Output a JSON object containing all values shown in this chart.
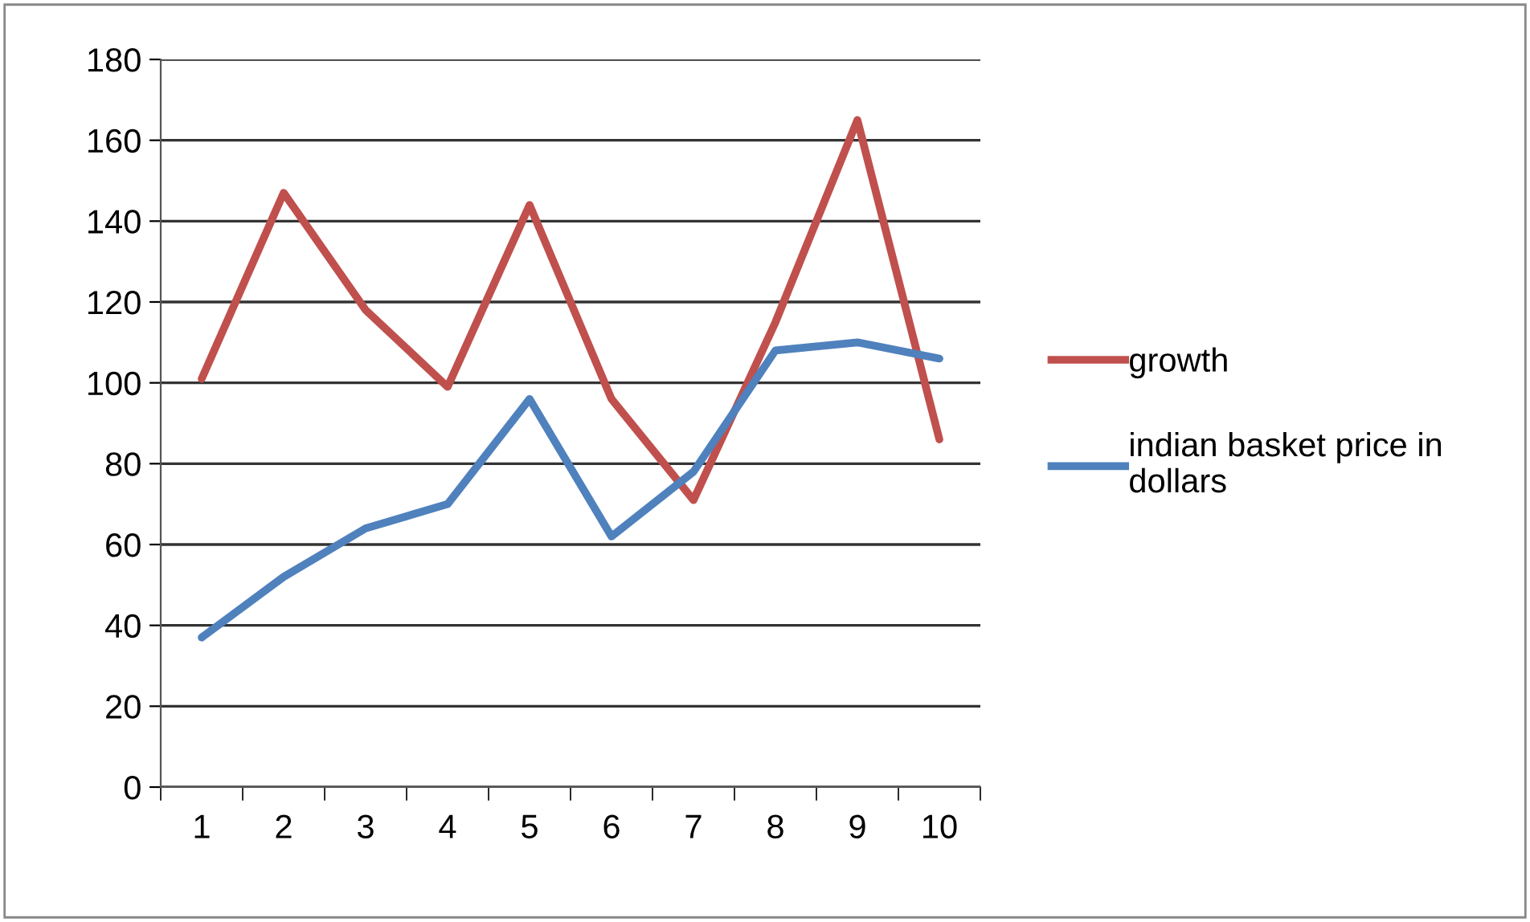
{
  "chart_data": {
    "type": "line",
    "categories": [
      "1",
      "2",
      "3",
      "4",
      "5",
      "6",
      "7",
      "8",
      "9",
      "10"
    ],
    "series": [
      {
        "name": "growth",
        "color": "#c0504d",
        "values": [
          101,
          147,
          118,
          99,
          144,
          96,
          71,
          115,
          165,
          86
        ]
      },
      {
        "name": "indian basket price in dollars",
        "color": "#4f81bd",
        "values": [
          37,
          52,
          64,
          70,
          96,
          62,
          78,
          108,
          110,
          106
        ]
      }
    ],
    "ylim": [
      0,
      180
    ],
    "yticks": [
      0,
      20,
      40,
      60,
      80,
      100,
      120,
      140,
      160,
      180
    ],
    "grid": "y",
    "legend": "right",
    "marker": "none",
    "line_style": "solid"
  }
}
